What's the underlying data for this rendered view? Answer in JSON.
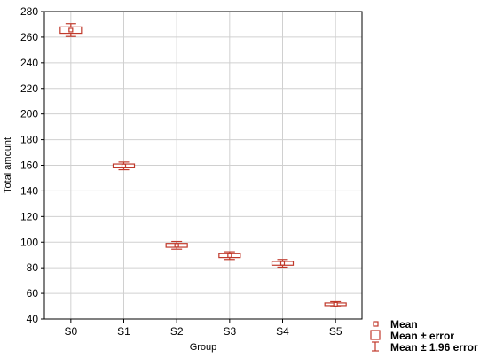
{
  "chart_data": {
    "type": "box",
    "title": "",
    "xlabel": "Group",
    "ylabel": "Total amount",
    "ylim": [
      40,
      280
    ],
    "yticks": [
      40,
      60,
      80,
      100,
      120,
      140,
      160,
      180,
      200,
      220,
      240,
      260,
      280
    ],
    "categories": [
      "S0",
      "S1",
      "S2",
      "S3",
      "S4",
      "S5"
    ],
    "mean": [
      265.5,
      159.5,
      97.5,
      89.5,
      83.5,
      51.5
    ],
    "se": [
      2.5,
      1.5,
      1.5,
      1.5,
      1.5,
      1.0
    ],
    "ci196": [
      5.0,
      3.0,
      3.0,
      3.0,
      3.0,
      2.0
    ],
    "grid": true,
    "legend_position": "bottom-right",
    "legend": [
      "Mean",
      "Mean ± error",
      "Mean ± 1.96 error"
    ],
    "color": "#c0392b"
  }
}
